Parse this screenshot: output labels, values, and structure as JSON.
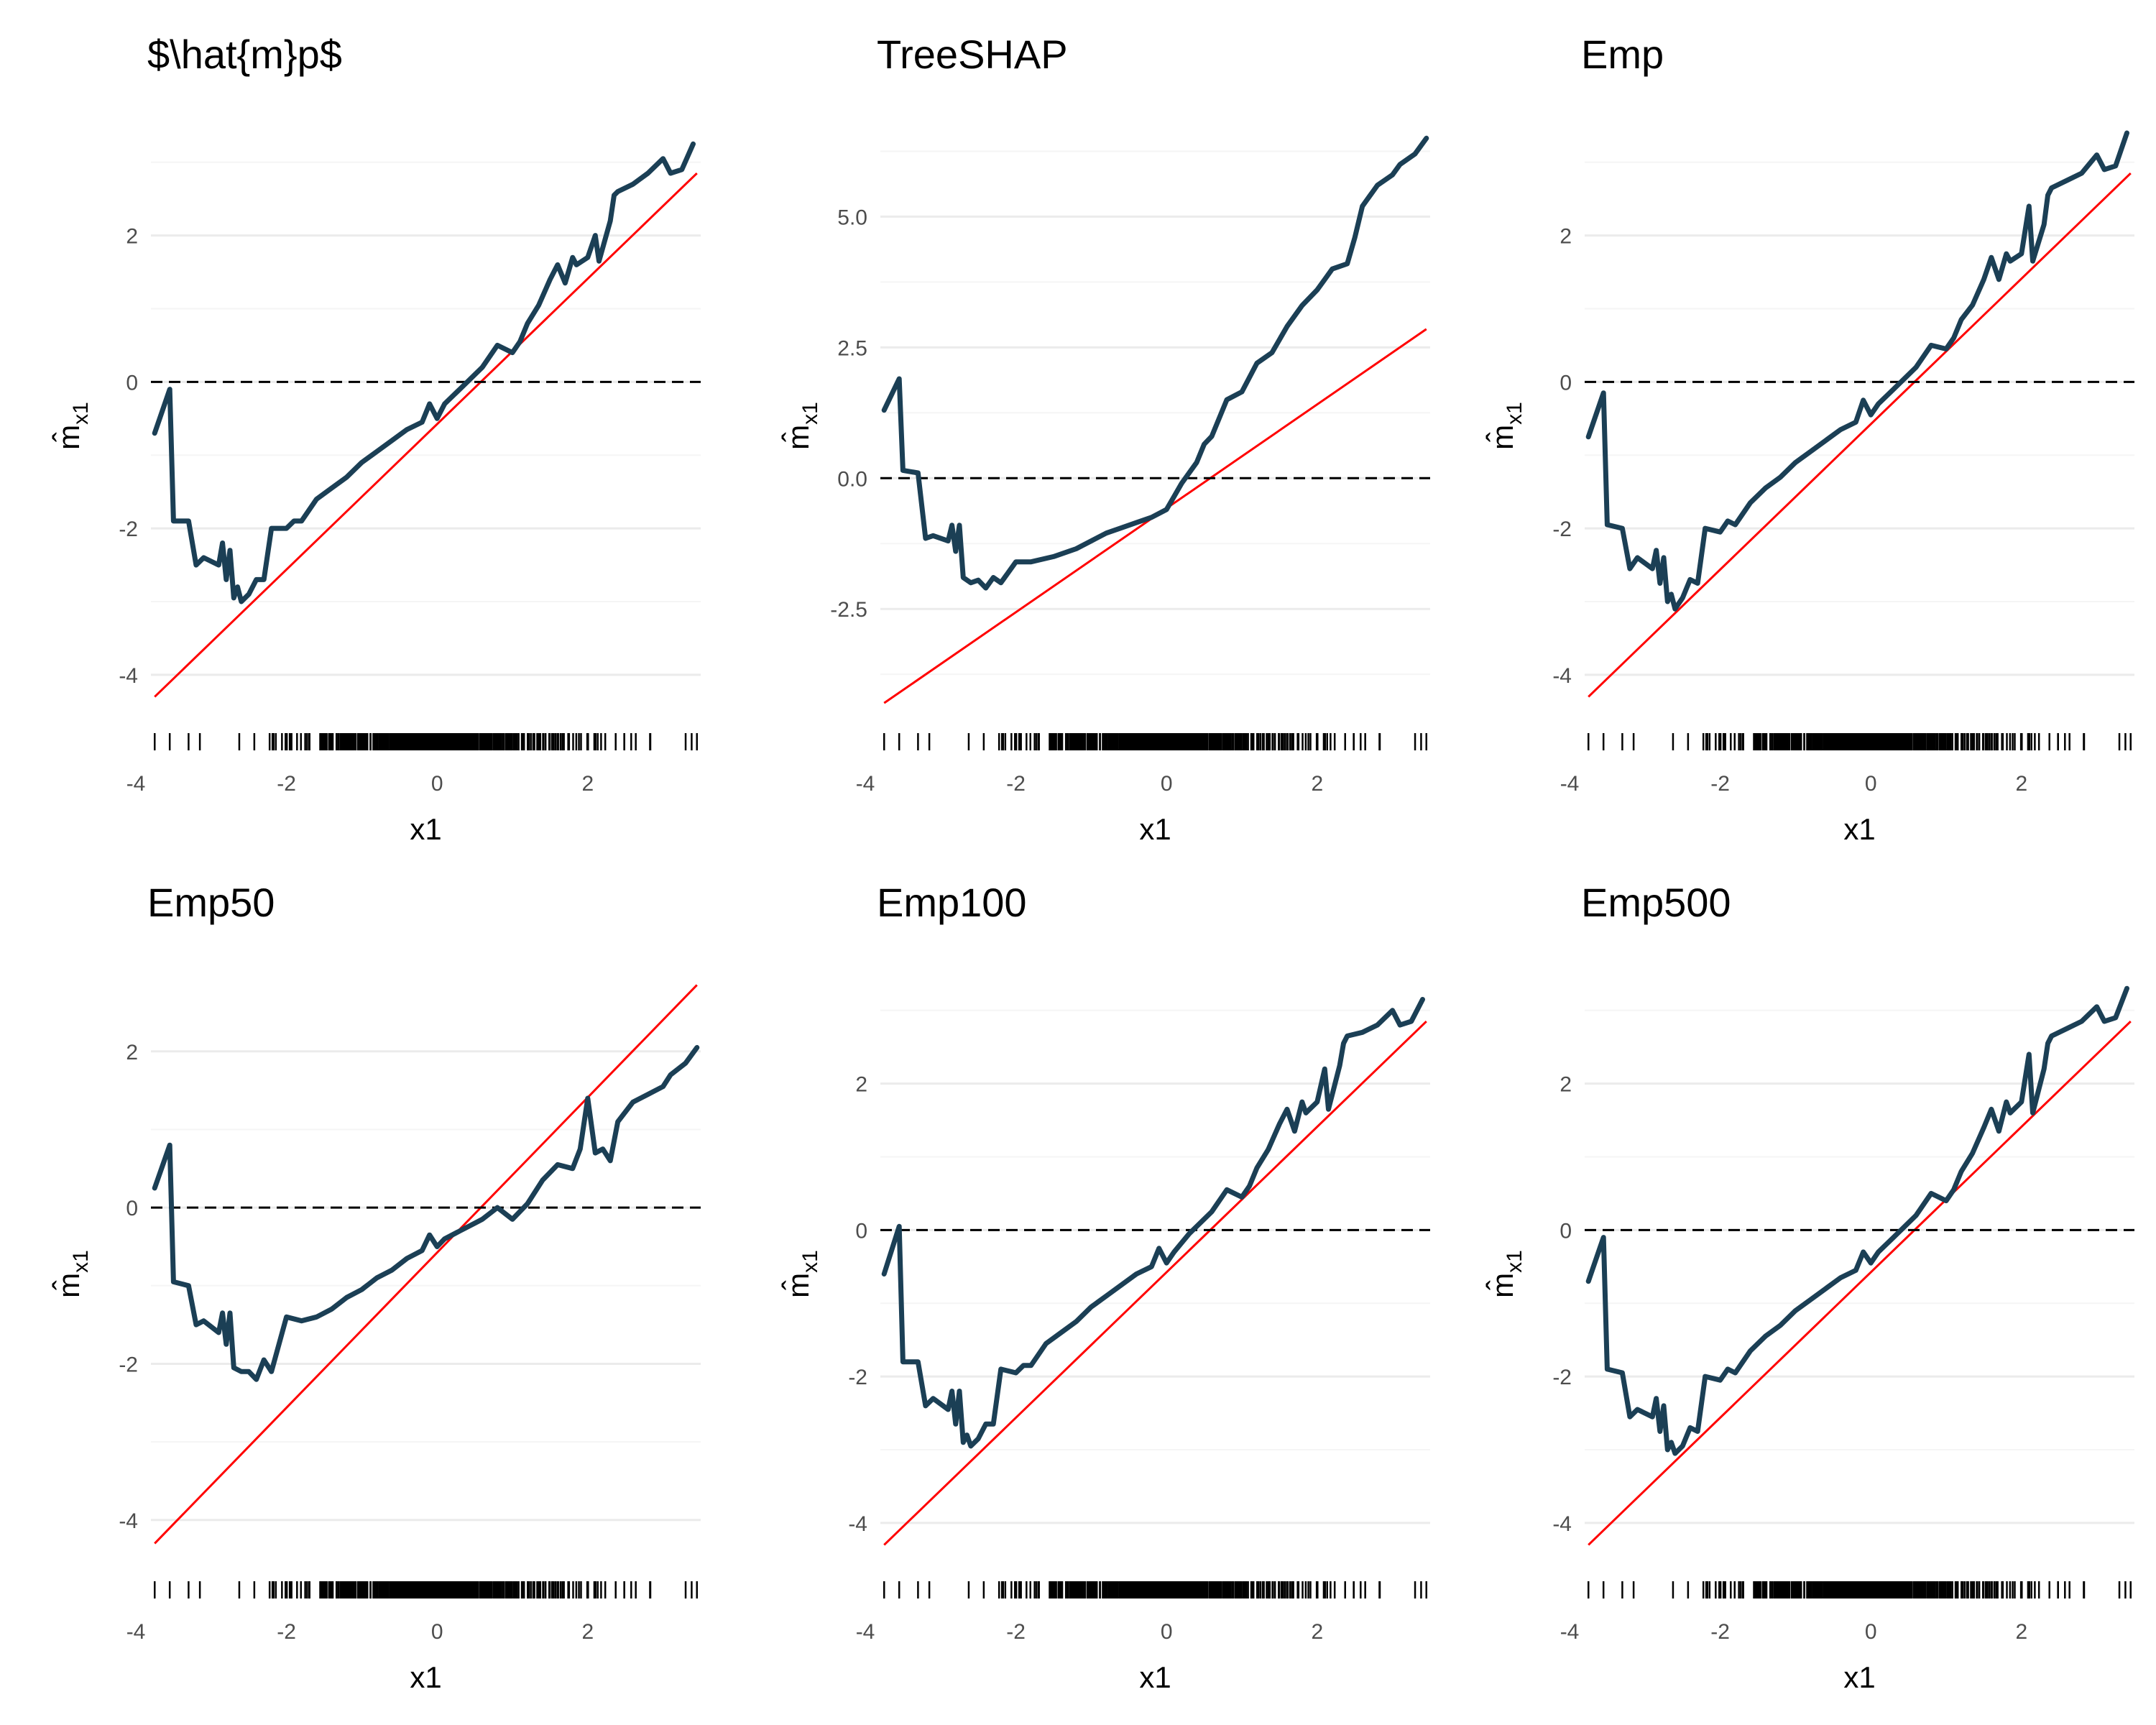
{
  "colors": {
    "background": "#ffffff",
    "grid_major": "#ebebeb",
    "grid_minor": "#f5f5f5",
    "curve": "#1b3f55",
    "reference": "#ff0000",
    "zero_line": "#000000",
    "rug": "#000000"
  },
  "chart_data": [
    {
      "type": "line",
      "title": "$\\hat{m}p$",
      "xlabel": "x1",
      "ylabel": "m̂",
      "ylabel_subscript": "x1",
      "xlim": [
        -3.8,
        3.5
      ],
      "ylim": [
        -4.6,
        3.4
      ],
      "xticks": [
        -4,
        -2,
        0,
        2
      ],
      "xtick_labels": [
        "-4",
        "-2",
        "0",
        "2"
      ],
      "yticks": [
        -4,
        -2,
        0,
        2
      ],
      "ytick_labels": [
        "-4",
        "-2",
        "0",
        "2"
      ],
      "reference_line": {
        "x": [
          -3.75,
          3.45
        ],
        "y": [
          -4.3,
          2.85
        ]
      },
      "zero_line": 0,
      "rug": true,
      "series": [
        {
          "x": [
            -3.75,
            -3.55,
            -3.5,
            -3.3,
            -3.2,
            -3.1,
            -2.9,
            -2.85,
            -2.8,
            -2.75,
            -2.7,
            -2.65,
            -2.6,
            -2.5,
            -2.4,
            -2.3,
            -2.2,
            -2.0,
            -1.9,
            -1.8,
            -1.6,
            -1.4,
            -1.2,
            -1.0,
            -0.8,
            -0.6,
            -0.4,
            -0.2,
            -0.1,
            0.0,
            0.1,
            0.3,
            0.5,
            0.6,
            0.8,
            1.0,
            1.1,
            1.2,
            1.35,
            1.5,
            1.6,
            1.7,
            1.8,
            1.85,
            2.0,
            2.1,
            2.15,
            2.3,
            2.35,
            2.4,
            2.6,
            2.8,
            3.0,
            3.1,
            3.25,
            3.4
          ],
          "y": [
            -0.7,
            -0.1,
            -1.9,
            -1.9,
            -2.5,
            -2.4,
            -2.5,
            -2.2,
            -2.7,
            -2.3,
            -2.95,
            -2.8,
            -3.0,
            -2.9,
            -2.7,
            -2.7,
            -2.0,
            -2.0,
            -1.9,
            -1.9,
            -1.6,
            -1.45,
            -1.3,
            -1.1,
            -0.95,
            -0.8,
            -0.65,
            -0.55,
            -0.3,
            -0.5,
            -0.3,
            -0.1,
            0.1,
            0.2,
            0.5,
            0.4,
            0.55,
            0.8,
            1.05,
            1.4,
            1.6,
            1.35,
            1.7,
            1.6,
            1.7,
            2.0,
            1.65,
            2.2,
            2.55,
            2.6,
            2.7,
            2.85,
            3.05,
            2.85,
            2.9,
            3.25
          ]
        }
      ]
    },
    {
      "type": "line",
      "title": "TreeSHAP",
      "xlabel": "x1",
      "ylabel": "m̂",
      "ylabel_subscript": "x1",
      "xlim": [
        -3.8,
        3.5
      ],
      "ylim": [
        -4.6,
        6.6
      ],
      "xticks": [
        -4,
        -2,
        0,
        2
      ],
      "xtick_labels": [
        "-4",
        "-2",
        "0",
        "2"
      ],
      "yticks": [
        -2.5,
        0,
        2.5,
        5
      ],
      "ytick_labels": [
        "-2.5",
        "0.0",
        "2.5",
        "5.0"
      ],
      "reference_line": {
        "x": [
          -3.75,
          3.45
        ],
        "y": [
          -4.3,
          2.85
        ]
      },
      "zero_line": 0,
      "rug": true,
      "series": [
        {
          "x": [
            -3.75,
            -3.55,
            -3.5,
            -3.3,
            -3.2,
            -3.1,
            -2.9,
            -2.85,
            -2.8,
            -2.75,
            -2.7,
            -2.6,
            -2.5,
            -2.4,
            -2.3,
            -2.2,
            -2.0,
            -1.8,
            -1.5,
            -1.2,
            -1.0,
            -0.8,
            -0.6,
            -0.4,
            -0.2,
            0.0,
            0.1,
            0.2,
            0.4,
            0.5,
            0.6,
            0.8,
            1.0,
            1.2,
            1.4,
            1.6,
            1.8,
            2.0,
            2.1,
            2.2,
            2.4,
            2.5,
            2.6,
            2.8,
            3.0,
            3.1,
            3.3,
            3.45
          ],
          "y": [
            1.3,
            1.9,
            0.15,
            0.1,
            -1.15,
            -1.1,
            -1.2,
            -0.9,
            -1.4,
            -0.9,
            -1.9,
            -2.0,
            -1.95,
            -2.1,
            -1.9,
            -2.0,
            -1.6,
            -1.6,
            -1.5,
            -1.35,
            -1.2,
            -1.05,
            -0.95,
            -0.85,
            -0.75,
            -0.6,
            -0.35,
            -0.1,
            0.3,
            0.65,
            0.8,
            1.5,
            1.65,
            2.2,
            2.4,
            2.9,
            3.3,
            3.6,
            3.8,
            4.0,
            4.1,
            4.6,
            5.2,
            5.6,
            5.8,
            6.0,
            6.2,
            6.5
          ]
        }
      ]
    },
    {
      "type": "line",
      "title": "Emp",
      "xlabel": "x1",
      "ylabel": "m̂",
      "ylabel_subscript": "x1",
      "xlim": [
        -3.8,
        3.5
      ],
      "ylim": [
        -4.6,
        3.4
      ],
      "xticks": [
        -4,
        -2,
        0,
        2
      ],
      "xtick_labels": [
        "-4",
        "-2",
        "0",
        "2"
      ],
      "yticks": [
        -4,
        -2,
        0,
        2
      ],
      "ytick_labels": [
        "-4",
        "-2",
        "0",
        "2"
      ],
      "reference_line": {
        "x": [
          -3.75,
          3.45
        ],
        "y": [
          -4.3,
          2.85
        ]
      },
      "zero_line": 0,
      "rug": true,
      "series": [
        {
          "x": [
            -3.75,
            -3.55,
            -3.5,
            -3.3,
            -3.2,
            -3.1,
            -2.9,
            -2.85,
            -2.8,
            -2.75,
            -2.7,
            -2.65,
            -2.6,
            -2.5,
            -2.4,
            -2.3,
            -2.2,
            -2.0,
            -1.9,
            -1.8,
            -1.6,
            -1.4,
            -1.2,
            -1.0,
            -0.8,
            -0.6,
            -0.4,
            -0.2,
            -0.1,
            0.0,
            0.1,
            0.3,
            0.5,
            0.6,
            0.8,
            1.0,
            1.1,
            1.2,
            1.35,
            1.5,
            1.6,
            1.7,
            1.8,
            1.85,
            2.0,
            2.1,
            2.15,
            2.3,
            2.35,
            2.4,
            2.6,
            2.8,
            3.0,
            3.1,
            3.25,
            3.4
          ],
          "y": [
            -0.75,
            -0.15,
            -1.95,
            -2.0,
            -2.55,
            -2.4,
            -2.55,
            -2.3,
            -2.75,
            -2.4,
            -3.0,
            -2.9,
            -3.1,
            -2.95,
            -2.7,
            -2.75,
            -2.0,
            -2.05,
            -1.9,
            -1.95,
            -1.65,
            -1.45,
            -1.3,
            -1.1,
            -0.95,
            -0.8,
            -0.65,
            -0.55,
            -0.25,
            -0.45,
            -0.3,
            -0.1,
            0.1,
            0.2,
            0.5,
            0.45,
            0.6,
            0.85,
            1.05,
            1.4,
            1.7,
            1.4,
            1.75,
            1.65,
            1.75,
            2.4,
            1.65,
            2.15,
            2.55,
            2.65,
            2.75,
            2.85,
            3.1,
            2.9,
            2.95,
            3.4
          ]
        }
      ]
    },
    {
      "type": "line",
      "title": "Emp50",
      "xlabel": "x1",
      "ylabel": "m̂",
      "ylabel_subscript": "x1",
      "xlim": [
        -3.8,
        3.5
      ],
      "ylim": [
        -4.6,
        2.9
      ],
      "xticks": [
        -4,
        -2,
        0,
        2
      ],
      "xtick_labels": [
        "-4",
        "-2",
        "0",
        "2"
      ],
      "yticks": [
        -4,
        -2,
        0,
        2
      ],
      "ytick_labels": [
        "-4",
        "-2",
        "0",
        "2"
      ],
      "reference_line": {
        "x": [
          -3.75,
          3.45
        ],
        "y": [
          -4.3,
          2.85
        ]
      },
      "zero_line": 0,
      "rug": true,
      "series": [
        {
          "x": [
            -3.75,
            -3.55,
            -3.5,
            -3.3,
            -3.2,
            -3.1,
            -2.9,
            -2.85,
            -2.8,
            -2.75,
            -2.7,
            -2.6,
            -2.5,
            -2.4,
            -2.3,
            -2.2,
            -2.0,
            -1.8,
            -1.6,
            -1.4,
            -1.2,
            -1.0,
            -0.8,
            -0.6,
            -0.4,
            -0.2,
            -0.1,
            0.0,
            0.1,
            0.3,
            0.5,
            0.6,
            0.8,
            1.0,
            1.2,
            1.4,
            1.6,
            1.8,
            1.9,
            2.0,
            2.1,
            2.2,
            2.3,
            2.4,
            2.6,
            2.8,
            3.0,
            3.1,
            3.3,
            3.45
          ],
          "y": [
            0.25,
            0.8,
            -0.95,
            -1.0,
            -1.5,
            -1.45,
            -1.6,
            -1.35,
            -1.75,
            -1.35,
            -2.05,
            -2.1,
            -2.1,
            -2.2,
            -1.95,
            -2.1,
            -1.4,
            -1.45,
            -1.4,
            -1.3,
            -1.15,
            -1.05,
            -0.9,
            -0.8,
            -0.65,
            -0.55,
            -0.35,
            -0.5,
            -0.4,
            -0.3,
            -0.2,
            -0.15,
            0.0,
            -0.15,
            0.05,
            0.35,
            0.55,
            0.5,
            0.75,
            1.4,
            0.7,
            0.75,
            0.6,
            1.1,
            1.35,
            1.45,
            1.55,
            1.7,
            1.85,
            2.05
          ]
        }
      ]
    },
    {
      "type": "line",
      "title": "Emp100",
      "xlabel": "x1",
      "ylabel": "m̂",
      "ylabel_subscript": "x1",
      "xlim": [
        -3.8,
        3.5
      ],
      "ylim": [
        -4.6,
        3.4
      ],
      "xticks": [
        -4,
        -2,
        0,
        2
      ],
      "xtick_labels": [
        "-4",
        "-2",
        "0",
        "2"
      ],
      "yticks": [
        -4,
        -2,
        0,
        2
      ],
      "ytick_labels": [
        "-4",
        "-2",
        "0",
        "2"
      ],
      "reference_line": {
        "x": [
          -3.75,
          3.45
        ],
        "y": [
          -4.3,
          2.85
        ]
      },
      "zero_line": 0,
      "rug": true,
      "series": [
        {
          "x": [
            -3.75,
            -3.55,
            -3.5,
            -3.3,
            -3.2,
            -3.1,
            -2.9,
            -2.85,
            -2.8,
            -2.75,
            -2.7,
            -2.65,
            -2.6,
            -2.5,
            -2.4,
            -2.3,
            -2.2,
            -2.0,
            -1.9,
            -1.8,
            -1.6,
            -1.4,
            -1.2,
            -1.0,
            -0.8,
            -0.6,
            -0.4,
            -0.2,
            -0.1,
            0.0,
            0.1,
            0.3,
            0.5,
            0.6,
            0.8,
            1.0,
            1.1,
            1.2,
            1.35,
            1.5,
            1.6,
            1.7,
            1.8,
            1.85,
            2.0,
            2.1,
            2.15,
            2.3,
            2.35,
            2.4,
            2.6,
            2.8,
            3.0,
            3.1,
            3.25,
            3.4
          ],
          "y": [
            -0.6,
            0.05,
            -1.8,
            -1.8,
            -2.4,
            -2.3,
            -2.45,
            -2.2,
            -2.65,
            -2.2,
            -2.9,
            -2.8,
            -2.95,
            -2.85,
            -2.65,
            -2.65,
            -1.9,
            -1.95,
            -1.85,
            -1.85,
            -1.55,
            -1.4,
            -1.25,
            -1.05,
            -0.9,
            -0.75,
            -0.6,
            -0.5,
            -0.25,
            -0.45,
            -0.3,
            -0.05,
            0.15,
            0.25,
            0.55,
            0.45,
            0.6,
            0.85,
            1.1,
            1.45,
            1.65,
            1.35,
            1.75,
            1.6,
            1.75,
            2.2,
            1.65,
            2.25,
            2.55,
            2.65,
            2.7,
            2.8,
            3.0,
            2.8,
            2.85,
            3.15
          ]
        }
      ]
    },
    {
      "type": "line",
      "title": "Emp500",
      "xlabel": "x1",
      "ylabel": "m̂",
      "ylabel_subscript": "x1",
      "xlim": [
        -3.8,
        3.5
      ],
      "ylim": [
        -4.6,
        3.4
      ],
      "xticks": [
        -4,
        -2,
        0,
        2
      ],
      "xtick_labels": [
        "-4",
        "-2",
        "0",
        "2"
      ],
      "yticks": [
        -4,
        -2,
        0,
        2
      ],
      "ytick_labels": [
        "-4",
        "-2",
        "0",
        "2"
      ],
      "reference_line": {
        "x": [
          -3.75,
          3.45
        ],
        "y": [
          -4.3,
          2.85
        ]
      },
      "zero_line": 0,
      "rug": true,
      "series": [
        {
          "x": [
            -3.75,
            -3.55,
            -3.5,
            -3.3,
            -3.2,
            -3.1,
            -2.9,
            -2.85,
            -2.8,
            -2.75,
            -2.7,
            -2.65,
            -2.6,
            -2.5,
            -2.4,
            -2.3,
            -2.2,
            -2.0,
            -1.9,
            -1.8,
            -1.6,
            -1.4,
            -1.2,
            -1.0,
            -0.8,
            -0.6,
            -0.4,
            -0.2,
            -0.1,
            0.0,
            0.1,
            0.3,
            0.5,
            0.6,
            0.8,
            1.0,
            1.1,
            1.2,
            1.35,
            1.5,
            1.6,
            1.7,
            1.8,
            1.85,
            2.0,
            2.1,
            2.15,
            2.3,
            2.35,
            2.4,
            2.6,
            2.8,
            3.0,
            3.1,
            3.25,
            3.4
          ],
          "y": [
            -0.7,
            -0.1,
            -1.9,
            -1.95,
            -2.55,
            -2.45,
            -2.55,
            -2.3,
            -2.75,
            -2.4,
            -3.0,
            -2.9,
            -3.05,
            -2.95,
            -2.7,
            -2.75,
            -2.0,
            -2.05,
            -1.9,
            -1.95,
            -1.65,
            -1.45,
            -1.3,
            -1.1,
            -0.95,
            -0.8,
            -0.65,
            -0.55,
            -0.3,
            -0.45,
            -0.3,
            -0.1,
            0.1,
            0.2,
            0.5,
            0.4,
            0.55,
            0.8,
            1.05,
            1.4,
            1.65,
            1.35,
            1.75,
            1.6,
            1.75,
            2.4,
            1.6,
            2.2,
            2.55,
            2.65,
            2.75,
            2.85,
            3.05,
            2.85,
            2.9,
            3.3
          ]
        }
      ]
    }
  ]
}
